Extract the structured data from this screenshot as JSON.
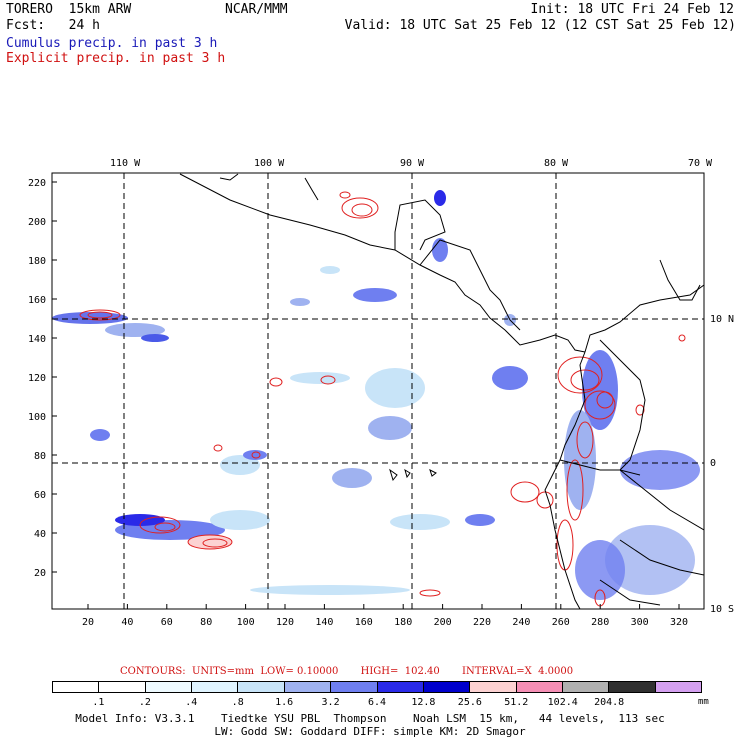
{
  "header": {
    "model": "TORERO  15km ARW",
    "center": "NCAR/MMM",
    "init": "Init: 18 UTC Fri 24 Feb 12",
    "fcst": "Fcst:   24 h",
    "valid": "Valid: 18 UTC Sat 25 Feb 12 (12 CST Sat 25 Feb 12)",
    "legend_cumulus": "Cumulus precip. in past 3 h",
    "legend_explicit": "Explicit precip. in past 3 h"
  },
  "axes": {
    "top_lon": [
      "110 W",
      "100 W",
      "90 W",
      "80 W",
      "70 W"
    ],
    "right_lat": [
      "10 N",
      "0",
      "10 S"
    ],
    "left_y": [
      "220",
      "200",
      "180",
      "160",
      "140",
      "120",
      "100",
      "80",
      "60",
      "40",
      "20"
    ],
    "bottom_x": [
      "20",
      "40",
      "60",
      "80",
      "100",
      "120",
      "140",
      "160",
      "180",
      "200",
      "220",
      "240",
      "260",
      "280",
      "300",
      "320"
    ]
  },
  "contour_info": {
    "text": "CONTOURS:  UNITS=mm  LOW= 0.10000       HIGH=  102.40       INTERVAL=X  4.0000"
  },
  "color_scale": {
    "colors": [
      "#ffffff",
      "#ffffff",
      "#eefaff",
      "#e0f4ff",
      "#c8e4f8",
      "#9fb2f0",
      "#6f7ff0",
      "#2a2ae8",
      "#0000cc",
      "#fcd2d2",
      "#f58fb5",
      "#b0b0b0",
      "#303030",
      "#d4a0f0"
    ],
    "labels": [
      ".1",
      ".2",
      ".4",
      ".8",
      "1.6",
      "3.2",
      "6.4",
      "12.8",
      "25.6",
      "51.2",
      "102.4",
      "204.8"
    ],
    "unit": "mm"
  },
  "footer": {
    "line1": "Model Info: V3.3.1    Tiedtke YSU PBL  Thompson    Noah LSM  15 km,   44 levels,  113 sec",
    "line2": "LW: Godd SW: Goddard DIFF: simple KM: 2D Smagor"
  }
}
